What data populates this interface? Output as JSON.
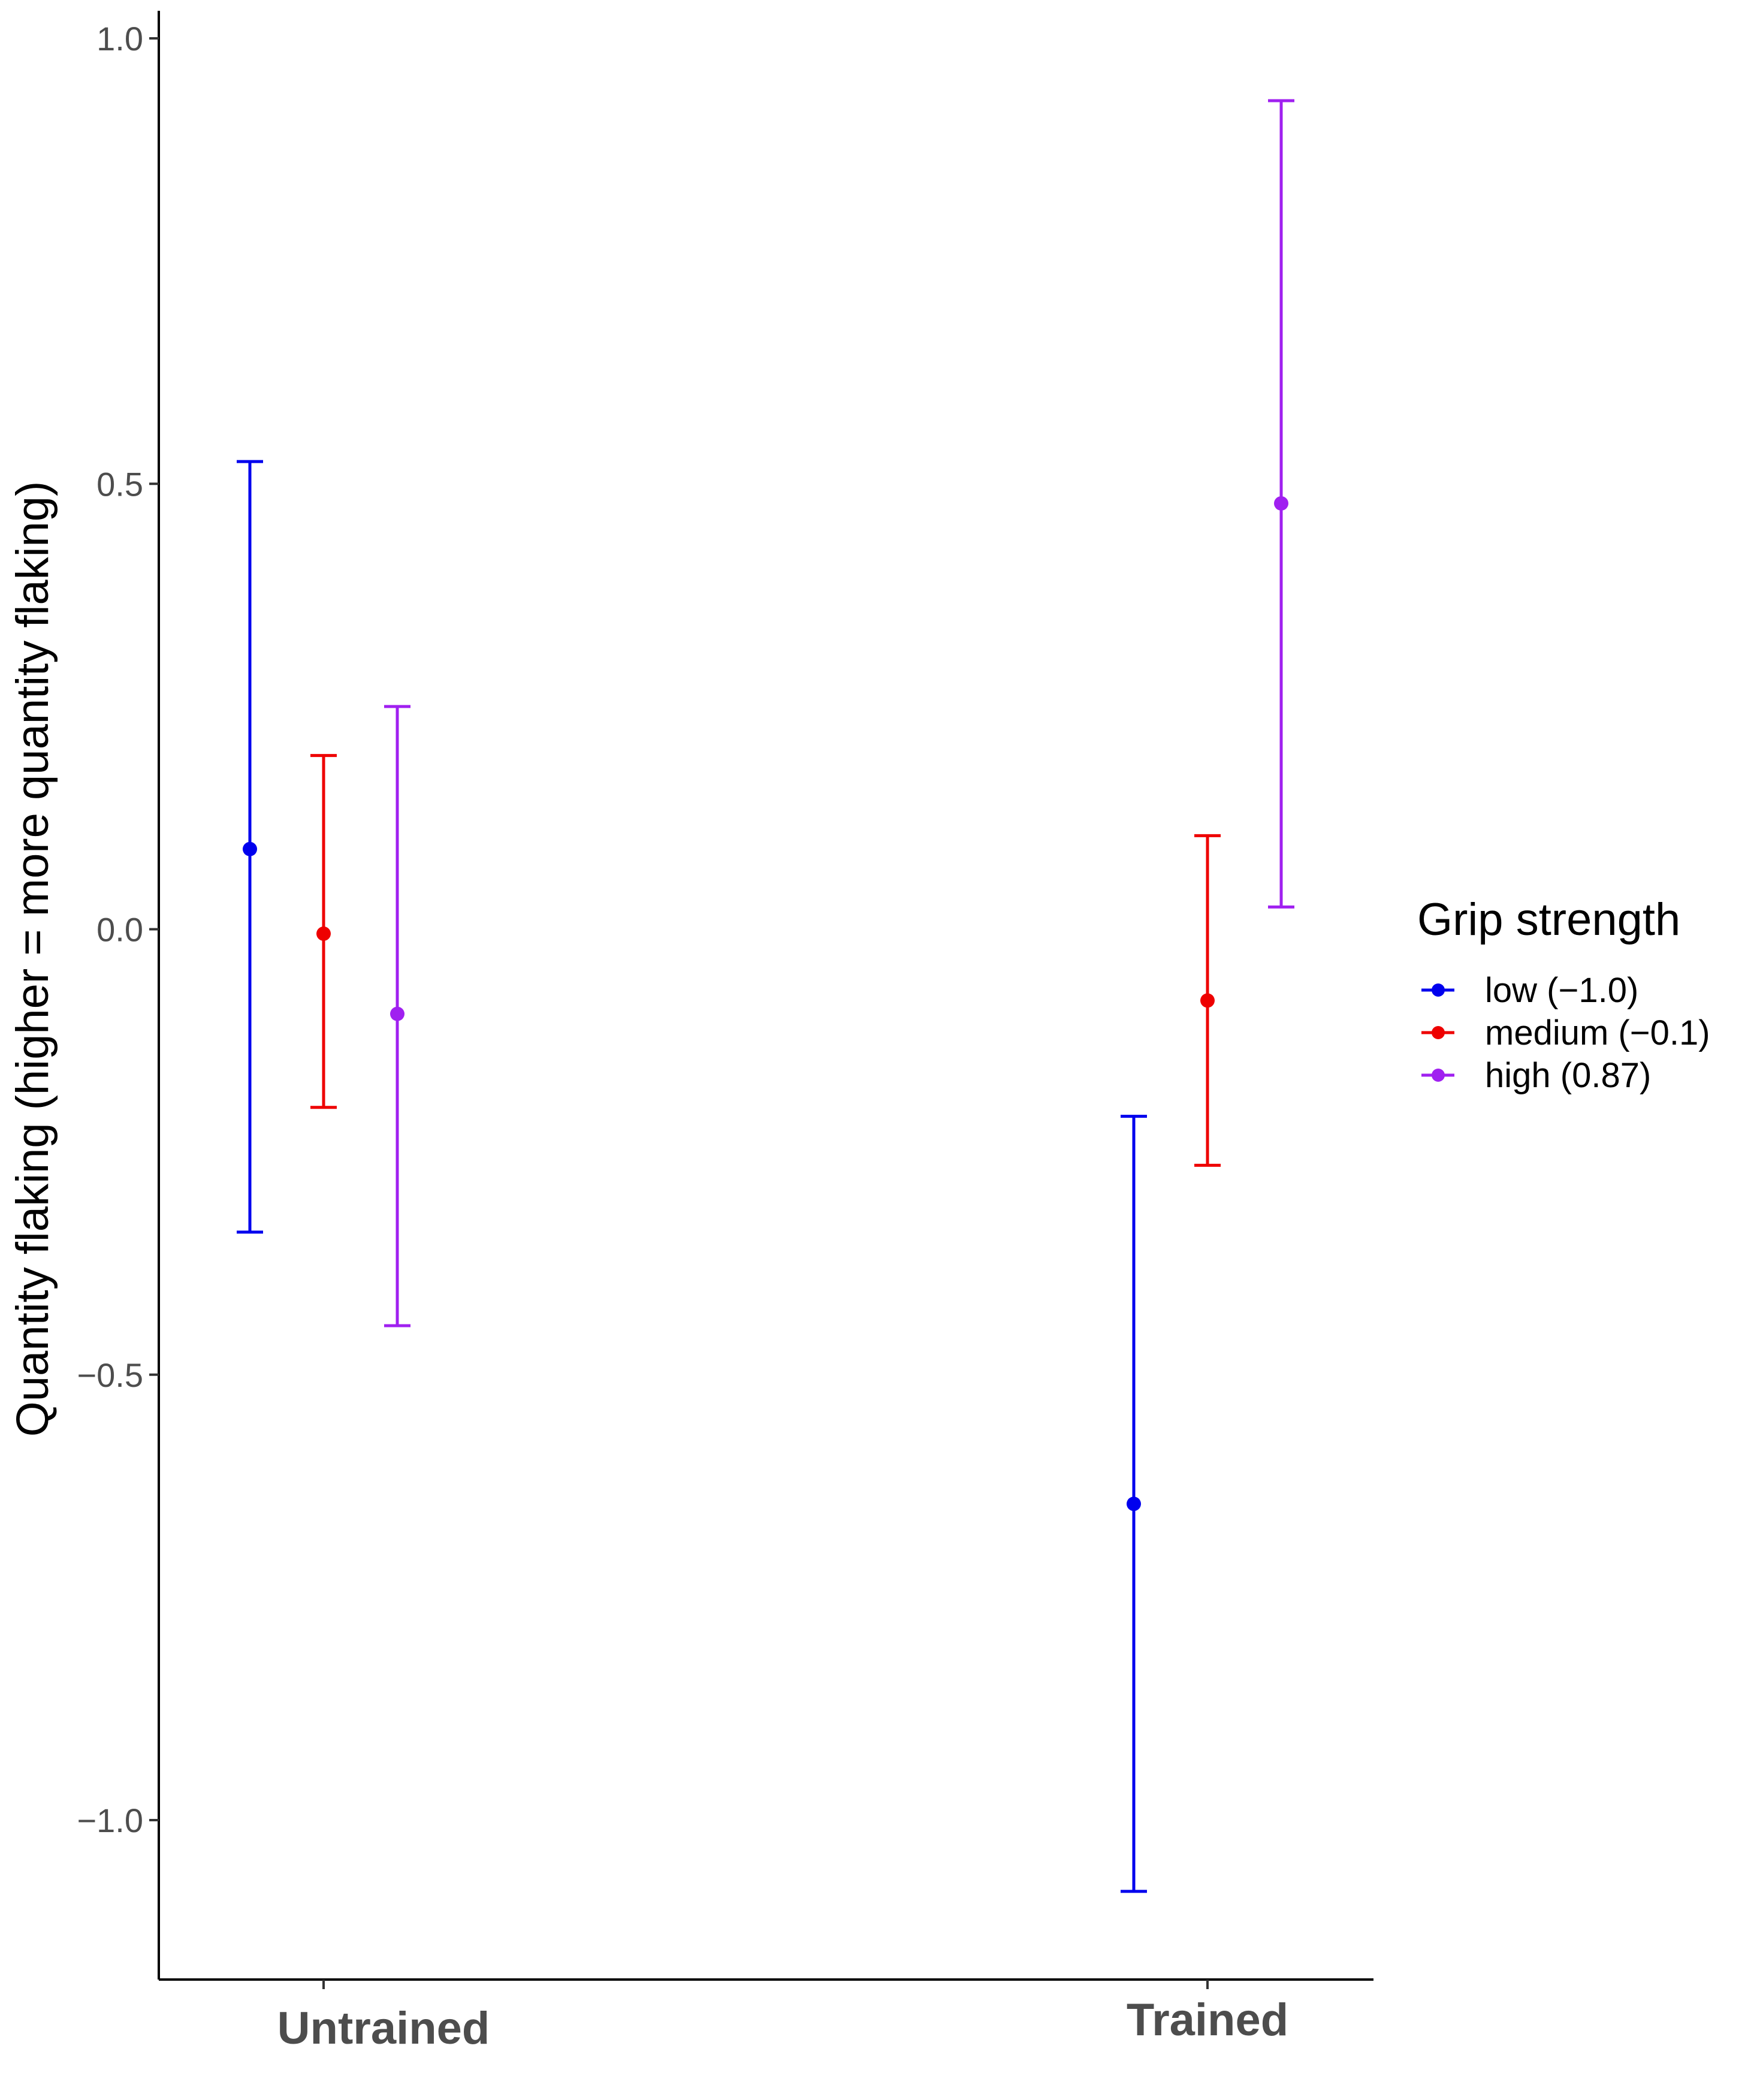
{
  "chart_data": {
    "type": "errorbar",
    "ylabel": "Quantity flaking (higher = more quantity flaking)",
    "xlabel": "",
    "ylim": [
      -1.15,
      1.03
    ],
    "yticks": [
      1.0,
      0.5,
      0.0,
      -0.5,
      -1.0
    ],
    "ytick_labels": [
      "1.0",
      "0.5",
      "0.0",
      "−0.5",
      "−1.0"
    ],
    "categories": [
      "Untrained",
      "Trained"
    ],
    "legend": {
      "title": "Grip strength",
      "position": "right"
    },
    "grid": false,
    "series": [
      {
        "name": "low (−1.0)",
        "color": "#0000ee",
        "points": [
          {
            "category": "Untrained",
            "y": 0.09,
            "lower": -0.34,
            "upper": 0.525
          },
          {
            "category": "Trained",
            "y": -0.645,
            "lower": -1.08,
            "upper": -0.21
          }
        ]
      },
      {
        "name": "medium (−0.1)",
        "color": "#ee0000",
        "points": [
          {
            "category": "Untrained",
            "y": -0.005,
            "lower": -0.2,
            "upper": 0.195
          },
          {
            "category": "Trained",
            "y": -0.08,
            "lower": -0.265,
            "upper": 0.105
          }
        ]
      },
      {
        "name": "high (0.87)",
        "color": "#a020f0",
        "points": [
          {
            "category": "Untrained",
            "y": -0.095,
            "lower": -0.445,
            "upper": 0.25
          },
          {
            "category": "Trained",
            "y": 0.478,
            "lower": 0.025,
            "upper": 0.93
          }
        ]
      }
    ]
  }
}
